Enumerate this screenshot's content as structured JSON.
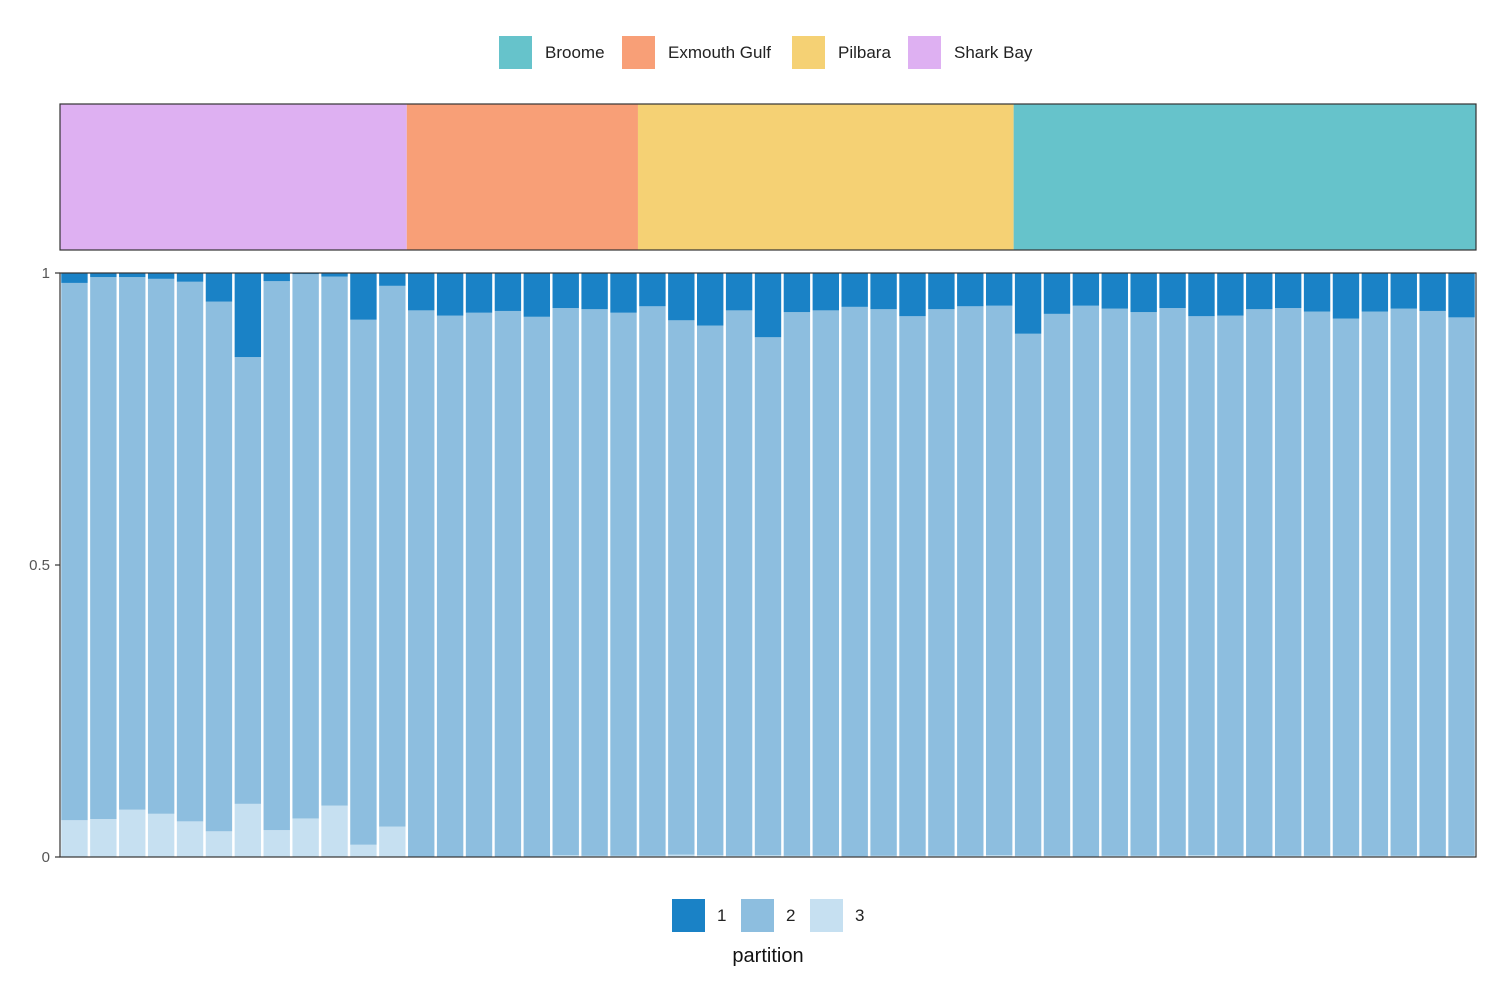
{
  "chart_data": [
    {
      "type": "bar",
      "role": "population-strip",
      "legend": {
        "entries": [
          {
            "label": "Broome",
            "color": "#66C3CB"
          },
          {
            "label": "Exmouth Gulf",
            "color": "#F89F77"
          },
          {
            "label": "Pilbara",
            "color": "#F5D174"
          },
          {
            "label": "Shark Bay",
            "color": "#DEB0F2"
          }
        ],
        "position": "top"
      },
      "segments": [
        {
          "population": "Shark Bay",
          "individuals": 12
        },
        {
          "population": "Exmouth Gulf",
          "individuals": 8
        },
        {
          "population": "Pilbara",
          "individuals": 13
        },
        {
          "population": "Broome",
          "individuals": 16
        }
      ]
    },
    {
      "type": "bar",
      "stacked": true,
      "ylim": [
        0,
        1
      ],
      "yticks": [
        "0",
        "0.5",
        "1"
      ],
      "ytick_values": [
        0,
        0.5,
        1
      ],
      "xlabel": "",
      "ylabel": "",
      "legend": {
        "title": "partition",
        "position": "bottom",
        "entries": [
          {
            "label": "1",
            "color": "#1A82C6"
          },
          {
            "label": "2",
            "color": "#8DBEDF"
          },
          {
            "label": "3",
            "color": "#C6E0F1"
          }
        ]
      },
      "series": [
        {
          "label": "3",
          "values": [
            0.063,
            0.065,
            0.081,
            0.074,
            0.061,
            0.044,
            0.091,
            0.046,
            0.066,
            0.088,
            0.021,
            0.052,
            0,
            0,
            0,
            0,
            0,
            0.003,
            0.002,
            0.002,
            0.002,
            0.004,
            0.003,
            0.002,
            0.003,
            0.002,
            0.002,
            0.001,
            0.002,
            0.002,
            0.002,
            0.002,
            0.003,
            0.002,
            0.002,
            0.001,
            0.002,
            0.002,
            0.002,
            0.003,
            0.002,
            0.001,
            0.002,
            0.002,
            0.002,
            0.002,
            0.002,
            0.001,
            0.002
          ]
        },
        {
          "label": "2",
          "values": [
            0.92,
            0.928,
            0.912,
            0.916,
            0.924,
            0.907,
            0.765,
            0.94,
            0.932,
            0.906,
            0.899,
            0.926,
            0.936,
            0.927,
            0.932,
            0.935,
            0.925,
            0.937,
            0.936,
            0.93,
            0.941,
            0.915,
            0.907,
            0.934,
            0.887,
            0.931,
            0.934,
            0.941,
            0.936,
            0.924,
            0.936,
            0.941,
            0.941,
            0.894,
            0.928,
            0.943,
            0.937,
            0.931,
            0.938,
            0.923,
            0.925,
            0.937,
            0.938,
            0.932,
            0.92,
            0.932,
            0.937,
            0.934,
            0.922
          ]
        },
        {
          "label": "1",
          "values": [
            0.017,
            0.007,
            0.007,
            0.01,
            0.015,
            0.049,
            0.144,
            0.014,
            0.002,
            0.006,
            0.08,
            0.022,
            0.064,
            0.073,
            0.068,
            0.065,
            0.075,
            0.06,
            0.062,
            0.068,
            0.057,
            0.081,
            0.09,
            0.064,
            0.11,
            0.067,
            0.064,
            0.058,
            0.062,
            0.074,
            0.062,
            0.057,
            0.056,
            0.104,
            0.07,
            0.056,
            0.061,
            0.067,
            0.06,
            0.074,
            0.073,
            0.062,
            0.06,
            0.066,
            0.078,
            0.066,
            0.061,
            0.065,
            0.076
          ]
        }
      ]
    }
  ]
}
